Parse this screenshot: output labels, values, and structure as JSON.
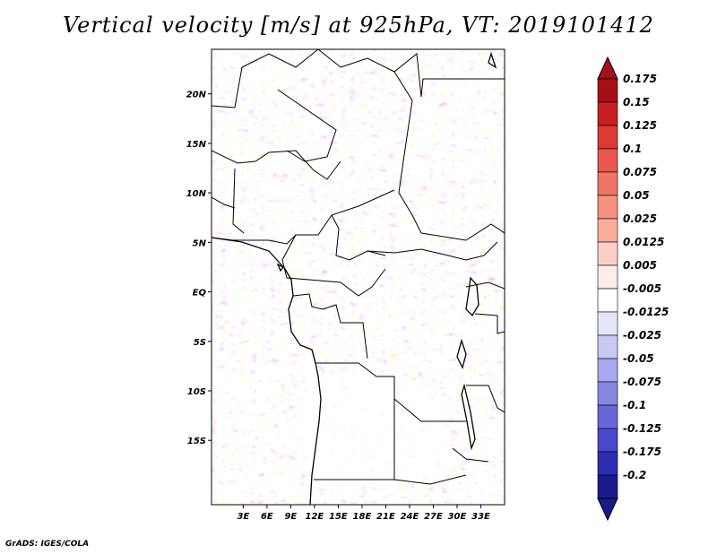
{
  "title": "Vertical velocity [m/s] at 925hPa, VT: 2019101412",
  "footer": "GrADS: IGES/COLA",
  "map": {
    "lon_range": [
      -1,
      36
    ],
    "lat_range": [
      -21.5,
      24.5
    ],
    "lat_ticks": [
      "20N",
      "15N",
      "10N",
      "5N",
      "EQ",
      "5S",
      "10S",
      "15S"
    ],
    "lon_ticks": [
      "3E",
      "6E",
      "9E",
      "12E",
      "15E",
      "18E",
      "21E",
      "24E",
      "27E",
      "30E",
      "33E"
    ]
  },
  "colorbar": {
    "labels": [
      "0.175",
      "0.15",
      "0.125",
      "0.1",
      "0.075",
      "0.05",
      "0.025",
      "0.0125",
      "0.005",
      "-0.005",
      "-0.0125",
      "-0.025",
      "-0.05",
      "-0.075",
      "-0.1",
      "-0.125",
      "-0.175",
      "-0.2"
    ],
    "colors": [
      "#a50f15",
      "#c71f24",
      "#db3a35",
      "#e8584c",
      "#f07465",
      "#f5917f",
      "#f8ae9c",
      "#fbd0c6",
      "#fdece8",
      "#ffffff",
      "#e6e6fb",
      "#c8c8f4",
      "#a8a8ee",
      "#8787e3",
      "#6767d8",
      "#4848c9",
      "#2e2eb0",
      "#1a1a8c"
    ],
    "top_color": "#a50f15",
    "bottom_color": "#1a1a8c"
  }
}
